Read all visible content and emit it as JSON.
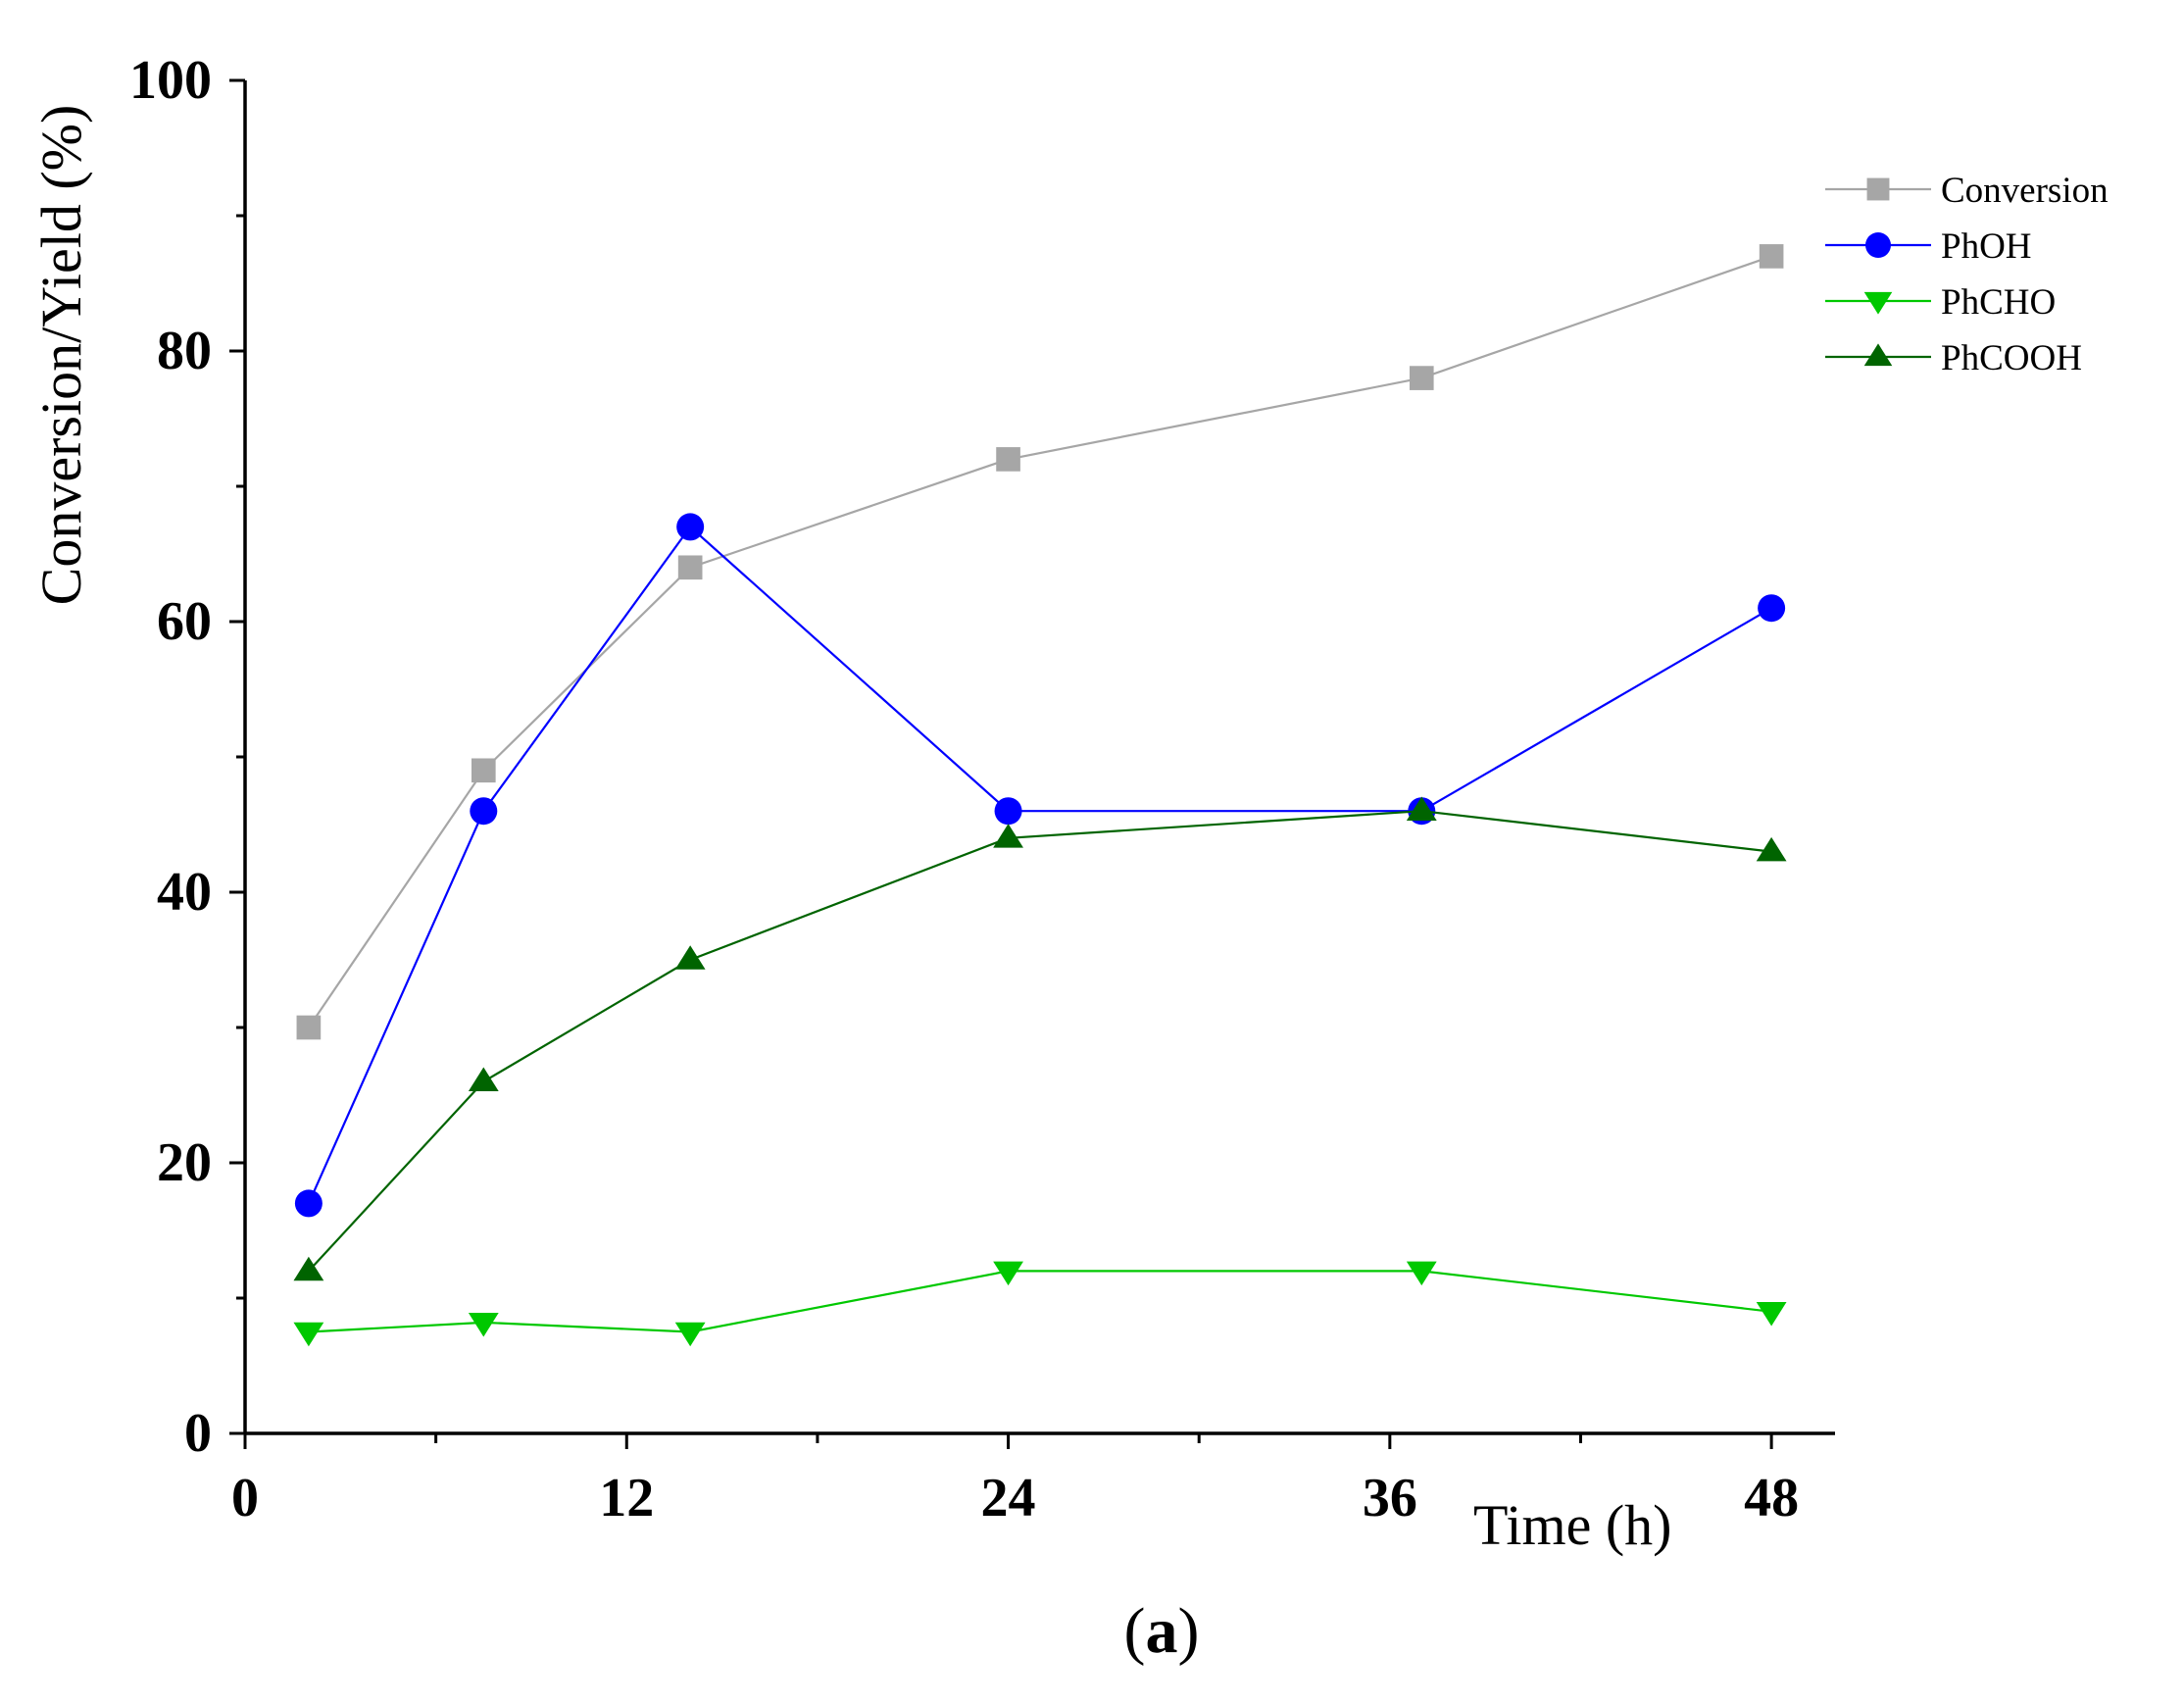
{
  "chart_data": {
    "type": "line",
    "title": "",
    "xlabel": "Time (h)",
    "ylabel": "Conversion/Yield (%)",
    "panel_label": {
      "open": "(",
      "letter": "a",
      "close": ")"
    },
    "xlim": [
      0,
      50
    ],
    "ylim": [
      0,
      100
    ],
    "xticks": [
      0,
      12,
      24,
      36,
      48
    ],
    "xticks_minor": [
      6,
      18,
      30,
      42
    ],
    "yticks": [
      0,
      20,
      40,
      60,
      80,
      100
    ],
    "yticks_minor": [
      10,
      30,
      50,
      70,
      90
    ],
    "x": [
      2,
      7.5,
      14,
      24,
      37,
      48
    ],
    "legend_position": "top-right",
    "grid": false,
    "series": [
      {
        "name": "Conversion",
        "values": [
          30,
          49,
          64,
          72,
          78,
          87
        ],
        "color": "#a6a6a6",
        "marker": "square"
      },
      {
        "name": "PhOH",
        "values": [
          17,
          46,
          67,
          46,
          46,
          61
        ],
        "color": "#0000ff",
        "marker": "circle"
      },
      {
        "name": "PhCHO",
        "values": [
          7.5,
          8.2,
          7.5,
          12,
          12,
          9
        ],
        "color": "#00c800",
        "marker": "triangle-down"
      },
      {
        "name": "PhCOOH",
        "values": [
          12,
          26,
          35,
          44,
          46,
          43
        ],
        "color": "#006400",
        "marker": "triangle-up"
      }
    ]
  }
}
